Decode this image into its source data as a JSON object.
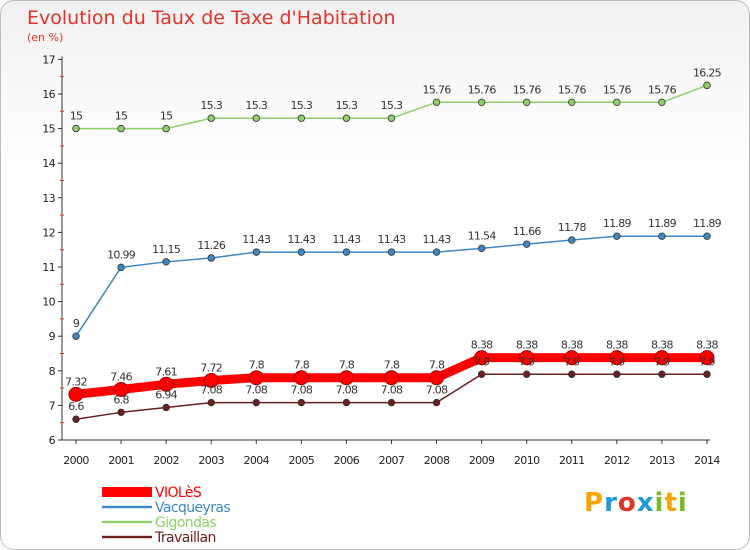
{
  "title": "Evolution du Taux de Taxe d'Habitation",
  "unit": "(en %)",
  "logo": {
    "text": "Proxiti",
    "letters": [
      "P",
      "r",
      "o",
      "x",
      "i",
      "t",
      "i"
    ],
    "colors": [
      "#f7a400",
      "#1d9bd7",
      "#e0342a",
      "#1d9bd7",
      "#7ab929",
      "#f7a400",
      "#7ab929"
    ]
  },
  "chart_data": {
    "type": "line",
    "title": "Evolution du Taux de Taxe d'Habitation",
    "ylabel": "(en %)",
    "xlabel": "",
    "categories": [
      "2000",
      "2001",
      "2002",
      "2003",
      "2004",
      "2005",
      "2006",
      "2007",
      "2008",
      "2009",
      "2010",
      "2011",
      "2012",
      "2013",
      "2014"
    ],
    "ylim": [
      6,
      17
    ],
    "yticks": [
      6,
      7,
      8,
      9,
      10,
      11,
      12,
      13,
      14,
      15,
      16,
      17
    ],
    "grid": false,
    "legend": "bottom-left",
    "series": [
      {
        "name": "VIOLèS",
        "color": "#ff0000",
        "highlight": true,
        "labels_shown": true,
        "values": [
          7.32,
          7.46,
          7.61,
          7.72,
          7.8,
          7.8,
          7.8,
          7.8,
          7.8,
          8.38,
          8.38,
          8.38,
          8.38,
          8.38,
          8.38
        ]
      },
      {
        "name": "Vacqueyras",
        "color": "#3f88c5",
        "labels_shown": true,
        "values": [
          9,
          10.99,
          11.15,
          11.26,
          11.43,
          11.43,
          11.43,
          11.43,
          11.43,
          11.54,
          11.66,
          11.78,
          11.89,
          11.89,
          11.89
        ]
      },
      {
        "name": "Gigondas",
        "color": "#8fd06a",
        "labels_shown": true,
        "values": [
          15,
          15,
          15,
          15.3,
          15.3,
          15.3,
          15.3,
          15.3,
          15.76,
          15.76,
          15.76,
          15.76,
          15.76,
          15.76,
          16.25
        ]
      },
      {
        "name": "Travaillan",
        "color": "#6b1f1f",
        "labels_shown": true,
        "values": [
          6.6,
          6.8,
          6.94,
          7.08,
          7.08,
          7.08,
          7.08,
          7.08,
          7.08,
          7.9,
          7.9,
          7.9,
          7.9,
          7.9,
          7.9
        ]
      }
    ]
  }
}
